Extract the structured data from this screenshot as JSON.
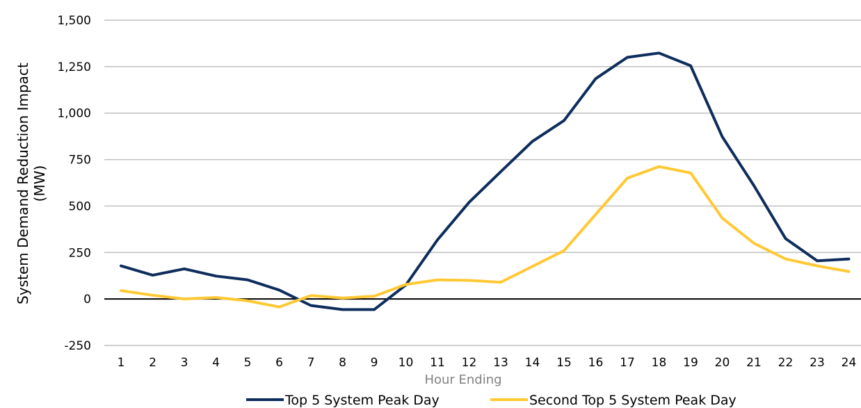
{
  "chart_data": {
    "type": "line",
    "title": "",
    "xlabel": "Hour Ending",
    "ylabel_lines": [
      "System Demand Reduction Impact",
      "(MW)"
    ],
    "categories": [
      "1",
      "2",
      "3",
      "4",
      "5",
      "6",
      "7",
      "8",
      "9",
      "10",
      "11",
      "12",
      "13",
      "14",
      "15",
      "16",
      "17",
      "18",
      "19",
      "20",
      "21",
      "22",
      "23",
      "24"
    ],
    "ylim": [
      -250,
      1500
    ],
    "yticks": [
      -250,
      0,
      250,
      500,
      750,
      1000,
      1250,
      1500
    ],
    "ytick_labels": [
      "-250",
      "0",
      "250",
      "500",
      "750",
      "1,000",
      "1,250",
      "1,500"
    ],
    "grid": true,
    "legend_position": "bottom",
    "series": [
      {
        "name": "Top 5 System Peak Day",
        "color": "#0e2d5c",
        "values": [
          178,
          128,
          162,
          123,
          103,
          48,
          -35,
          -57,
          -57,
          75,
          318,
          520,
          685,
          848,
          960,
          1185,
          1300,
          1323,
          1255,
          873,
          610,
          325,
          205,
          215
        ]
      },
      {
        "name": "Second Top 5 System Peak Day",
        "color": "#ffc935",
        "values": [
          45,
          20,
          0,
          8,
          -10,
          -43,
          18,
          5,
          15,
          78,
          103,
          100,
          90,
          175,
          260,
          455,
          650,
          712,
          678,
          435,
          300,
          215,
          178,
          148
        ]
      }
    ]
  }
}
